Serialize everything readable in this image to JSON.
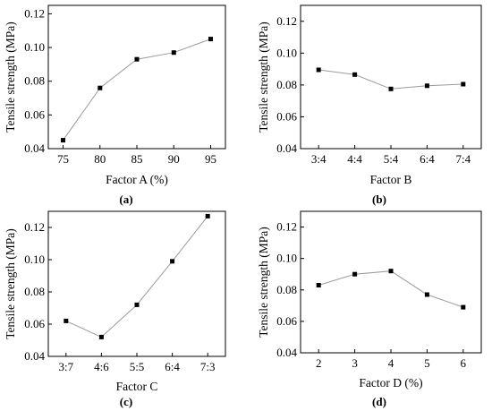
{
  "chart_data": [
    {
      "type": "line",
      "panel_label": "(a)",
      "xlabel": "Factor A (%)",
      "ylabel": "Tensile strength (MPa)",
      "x_type": "numeric",
      "categories": [
        "75",
        "80",
        "85",
        "90",
        "95"
      ],
      "x": [
        75,
        80,
        85,
        90,
        95
      ],
      "xlim": [
        73,
        97
      ],
      "values": [
        0.045,
        0.076,
        0.093,
        0.097,
        0.105
      ],
      "ylim": [
        0.04,
        0.125
      ],
      "yticks": [
        "0.04",
        "0.06",
        "0.08",
        "0.10",
        "0.12"
      ],
      "grid": false
    },
    {
      "type": "line",
      "panel_label": "(b)",
      "xlabel": "Factor B",
      "ylabel": "Tensile strength (MPa)",
      "x_type": "category",
      "categories": [
        "3:4",
        "4:4",
        "5:4",
        "6:4",
        "7:4"
      ],
      "values": [
        0.0895,
        0.0865,
        0.0775,
        0.0795,
        0.0805
      ],
      "ylim": [
        0.04,
        0.13
      ],
      "yticks": [
        "0.04",
        "0.06",
        "0.08",
        "0.10",
        "0.12"
      ],
      "grid": false
    },
    {
      "type": "line",
      "panel_label": "(c)",
      "xlabel": "Factor C",
      "ylabel": "Tensile strength (MPa)",
      "x_type": "category",
      "categories": [
        "3:7",
        "4:6",
        "5:5",
        "6:4",
        "7:3"
      ],
      "values": [
        0.062,
        0.052,
        0.072,
        0.099,
        0.127
      ],
      "ylim": [
        0.04,
        0.13
      ],
      "yticks": [
        "0.04",
        "0.06",
        "0.08",
        "0.10",
        "0.12"
      ],
      "grid": false
    },
    {
      "type": "line",
      "panel_label": "(d)",
      "xlabel": "Factor D (%)",
      "ylabel": "Tensile strength (MPa)",
      "x_type": "category",
      "categories": [
        "2",
        "3",
        "4",
        "5",
        "6"
      ],
      "values": [
        0.083,
        0.09,
        0.092,
        0.077,
        0.069
      ],
      "ylim": [
        0.04,
        0.13
      ],
      "yticks": [
        "0.04",
        "0.06",
        "0.08",
        "0.10",
        "0.12"
      ],
      "grid": false
    }
  ],
  "colors": {
    "line": "#9a9a9a",
    "marker": "#000000",
    "axis": "#000000"
  }
}
